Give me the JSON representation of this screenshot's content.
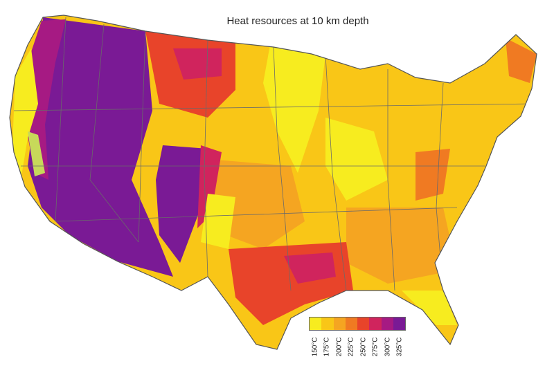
{
  "title": "Heat resources at 10 km depth",
  "legend": {
    "items": [
      {
        "label": "150°C",
        "color": "#f7ec1f"
      },
      {
        "label": "175°C",
        "color": "#f9c617"
      },
      {
        "label": "200°C",
        "color": "#f5a521"
      },
      {
        "label": "225°C",
        "color": "#f07a22"
      },
      {
        "label": "250°C",
        "color": "#e8442a"
      },
      {
        "label": "275°C",
        "color": "#d0245d"
      },
      {
        "label": "300°C",
        "color": "#a61a83"
      },
      {
        "label": "325°C",
        "color": "#7a1a95"
      }
    ]
  }
}
